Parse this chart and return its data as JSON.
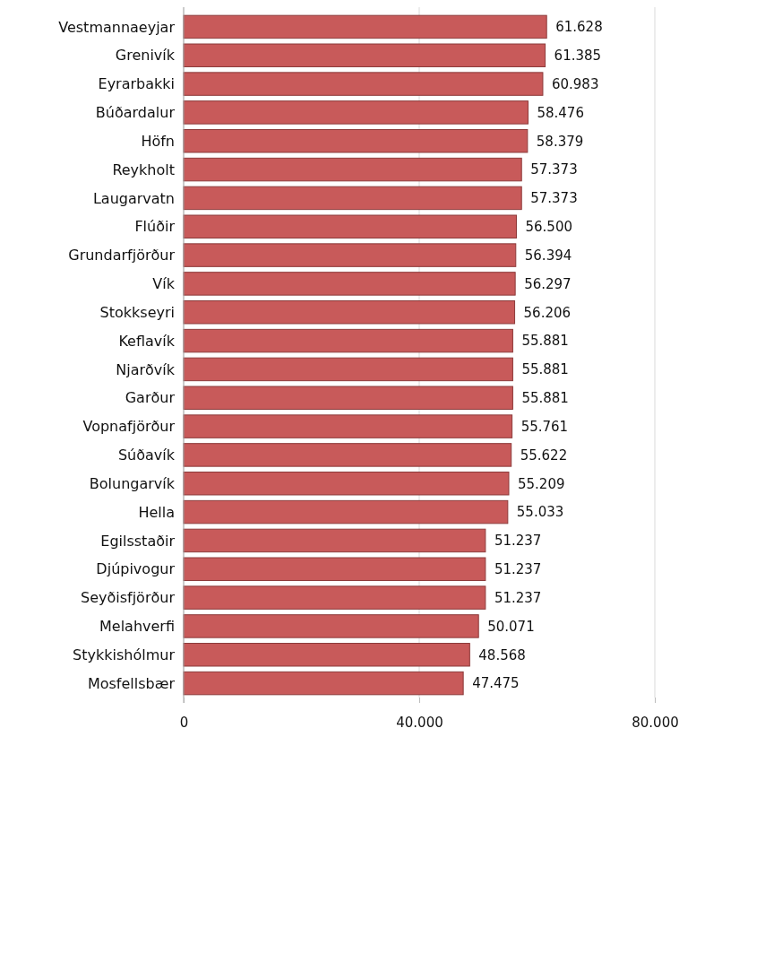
{
  "chart_data": {
    "type": "bar",
    "orientation": "horizontal",
    "categories": [
      "Vestmannaeyjar",
      "Grenivík",
      "Eyrarbakki",
      "Búðardalur",
      "Höfn",
      "Reykholt",
      "Laugarvatn",
      "Flúðir",
      "Grundarfjörður",
      "Vík",
      "Stokkseyri",
      "Keflavík",
      "Njarðvík",
      "Garður",
      "Vopnafjörður",
      "Súðavík",
      "Bolungarvík",
      "Hella",
      "Egilsstaðir",
      "Djúpivogur",
      "Seyðisfjörður",
      "Melahverfi",
      "Stykkishólmur",
      "Mosfellsbær"
    ],
    "values": [
      61628,
      61385,
      60983,
      58476,
      58379,
      57373,
      57373,
      56500,
      56394,
      56297,
      56206,
      55881,
      55881,
      55881,
      55761,
      55622,
      55209,
      55033,
      51237,
      51237,
      51237,
      50071,
      48568,
      47475
    ],
    "value_labels": [
      "61.628",
      "61.385",
      "60.983",
      "58.476",
      "58.379",
      "57.373",
      "57.373",
      "56.500",
      "56.394",
      "56.297",
      "56.206",
      "55.881",
      "55.881",
      "55.881",
      "55.761",
      "55.622",
      "55.209",
      "55.033",
      "51.237",
      "51.237",
      "51.237",
      "50.071",
      "48.568",
      "47.475"
    ],
    "color": "#c85a5a",
    "xlim": [
      0,
      80000
    ],
    "xticks": [
      {
        "value": 0,
        "label": "0"
      },
      {
        "value": 40000,
        "label": "40.000"
      },
      {
        "value": 80000,
        "label": "80.000"
      }
    ],
    "grid": "x"
  }
}
